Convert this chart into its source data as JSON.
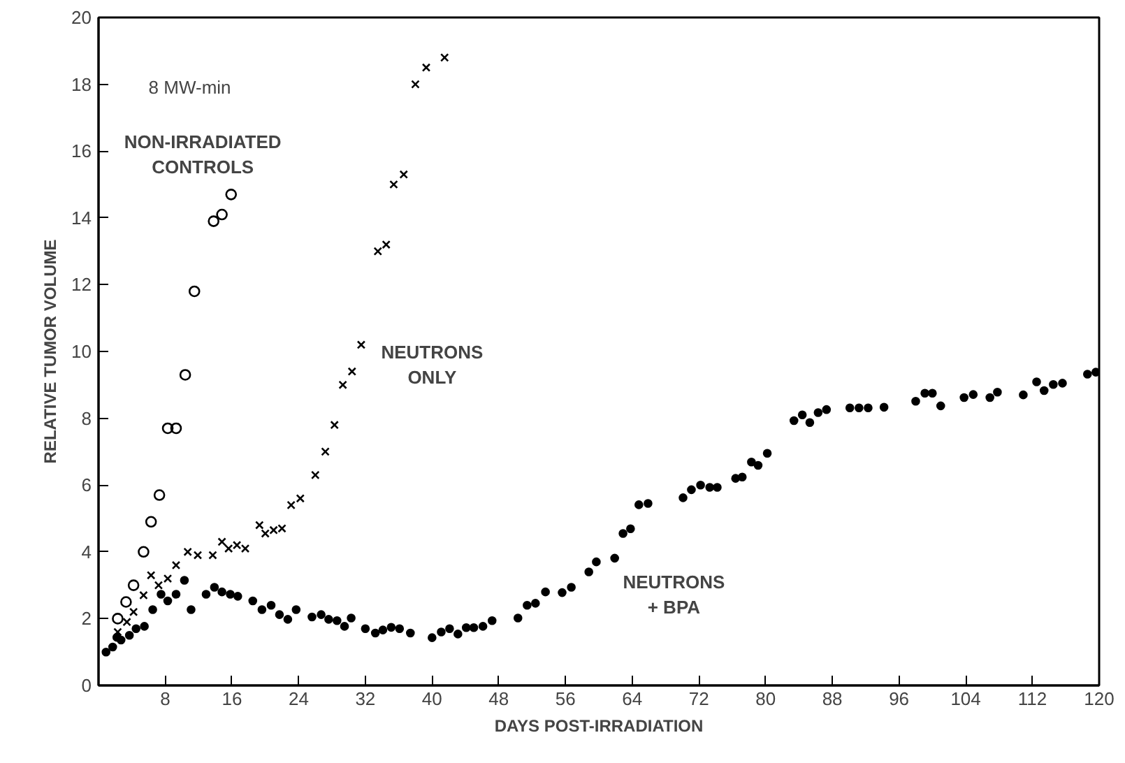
{
  "chart_data": {
    "type": "scatter",
    "xlabel": "DAYS POST-IRRADIATION",
    "ylabel": "RELATIVE TUMOR VOLUME",
    "annotations": [
      "8 MW-min"
    ],
    "xlim": [
      0,
      120
    ],
    "xticks": [
      8,
      16,
      24,
      32,
      40,
      48,
      56,
      64,
      72,
      80,
      88,
      96,
      104,
      112,
      120
    ],
    "ylim": [
      0,
      20
    ],
    "yticks": [
      0,
      2,
      4,
      6,
      8,
      10,
      12,
      14,
      16,
      18,
      20
    ],
    "grid": false,
    "legend": false,
    "series": [
      {
        "name": "NON-IRRADIATED CONTROLS",
        "color": "#000000",
        "marker": "circle",
        "x": [
          2.3,
          3.3,
          4.2,
          5.4,
          6.3,
          7.3,
          8.3,
          9.3,
          10.4,
          11.5,
          13.8,
          14.8,
          15.9
        ],
        "values": [
          2.0,
          2.5,
          3.0,
          4.0,
          4.9,
          5.7,
          7.7,
          7.7,
          9.3,
          11.8,
          13.9,
          14.1,
          14.7
        ]
      },
      {
        "name": "NEUTRONS ONLY",
        "color": "#000000",
        "marker": "cross",
        "x": [
          2.3,
          3.4,
          4.2,
          5.4,
          6.3,
          7.2,
          8.3,
          9.3,
          10.7,
          11.9,
          13.7,
          14.8,
          15.6,
          16.6,
          17.6,
          19.3,
          20,
          21,
          22,
          23.1,
          24.2,
          26,
          27.2,
          28.3,
          29.3,
          30.4,
          31.5,
          33.5,
          34.5,
          35.4,
          36.6,
          38,
          39.3,
          41.5
        ],
        "values": [
          1.6,
          1.9,
          2.2,
          2.7,
          3.3,
          3.0,
          3.2,
          3.6,
          4.0,
          3.9,
          3.9,
          4.3,
          4.1,
          4.2,
          4.1,
          4.8,
          4.55,
          4.65,
          4.7,
          5.4,
          5.6,
          6.3,
          7.0,
          7.8,
          9.0,
          9.4,
          10.2,
          13.0,
          13.2,
          15.0,
          15.3,
          18.0,
          18.5,
          18.8
        ]
      },
      {
        "name": "NEUTRONS + BPA",
        "color": "#000000",
        "marker": "circle",
        "x": [
          0.9,
          1.7,
          2.2,
          2.7,
          3.7,
          4.5,
          5.5,
          6.5,
          7.5,
          8.3,
          9.3,
          10.3,
          11.1,
          12.9,
          13.9,
          14.8,
          15.8,
          16.7,
          18.5,
          19.6,
          20.7,
          21.7,
          22.7,
          23.7,
          25.6,
          26.7,
          27.6,
          28.6,
          29.5,
          30.3,
          32,
          33.2,
          34.1,
          35.1,
          36.1,
          37.4,
          40,
          41.1,
          42.1,
          43.1,
          44.1,
          45,
          46.1,
          47.2,
          50.3,
          51.4,
          52.4,
          53.6,
          55.6,
          56.7,
          58.8,
          59.7,
          61.9,
          62.9,
          63.8,
          64.8,
          65.9,
          70.1,
          71.1,
          72.2,
          73.3,
          74.2,
          76.4,
          77.2,
          78.3,
          79.1,
          80.2,
          83.4,
          84.4,
          85.3,
          86.3,
          87.3,
          90.1,
          91.2,
          92.3,
          94.2,
          98,
          99.1,
          100,
          101,
          103.8,
          104.9,
          106.9,
          107.8,
          110.9,
          112.5,
          113.4,
          114.5,
          115.6,
          118.6,
          119.6
        ],
        "values": [
          1.0,
          1.15,
          1.44,
          1.36,
          1.5,
          1.7,
          1.77,
          2.27,
          2.73,
          2.53,
          2.73,
          3.15,
          2.27,
          2.73,
          2.94,
          2.8,
          2.73,
          2.67,
          2.53,
          2.27,
          2.4,
          2.12,
          1.98,
          2.27,
          2.05,
          2.12,
          1.98,
          1.94,
          1.77,
          2.02,
          1.7,
          1.57,
          1.66,
          1.74,
          1.7,
          1.57,
          1.43,
          1.6,
          1.7,
          1.54,
          1.73,
          1.73,
          1.77,
          1.94,
          2.02,
          2.4,
          2.46,
          2.8,
          2.78,
          2.94,
          3.4,
          3.7,
          3.81,
          4.55,
          4.69,
          5.41,
          5.45,
          5.62,
          5.86,
          6.0,
          5.93,
          5.93,
          6.2,
          6.24,
          6.69,
          6.59,
          6.95,
          7.93,
          8.1,
          7.87,
          8.17,
          8.26,
          8.31,
          8.31,
          8.31,
          8.33,
          8.51,
          8.75,
          8.75,
          8.37,
          8.62,
          8.71,
          8.62,
          8.78,
          8.7,
          9.09,
          8.83,
          9.01,
          9.05,
          9.32,
          9.38
        ]
      }
    ]
  }
}
